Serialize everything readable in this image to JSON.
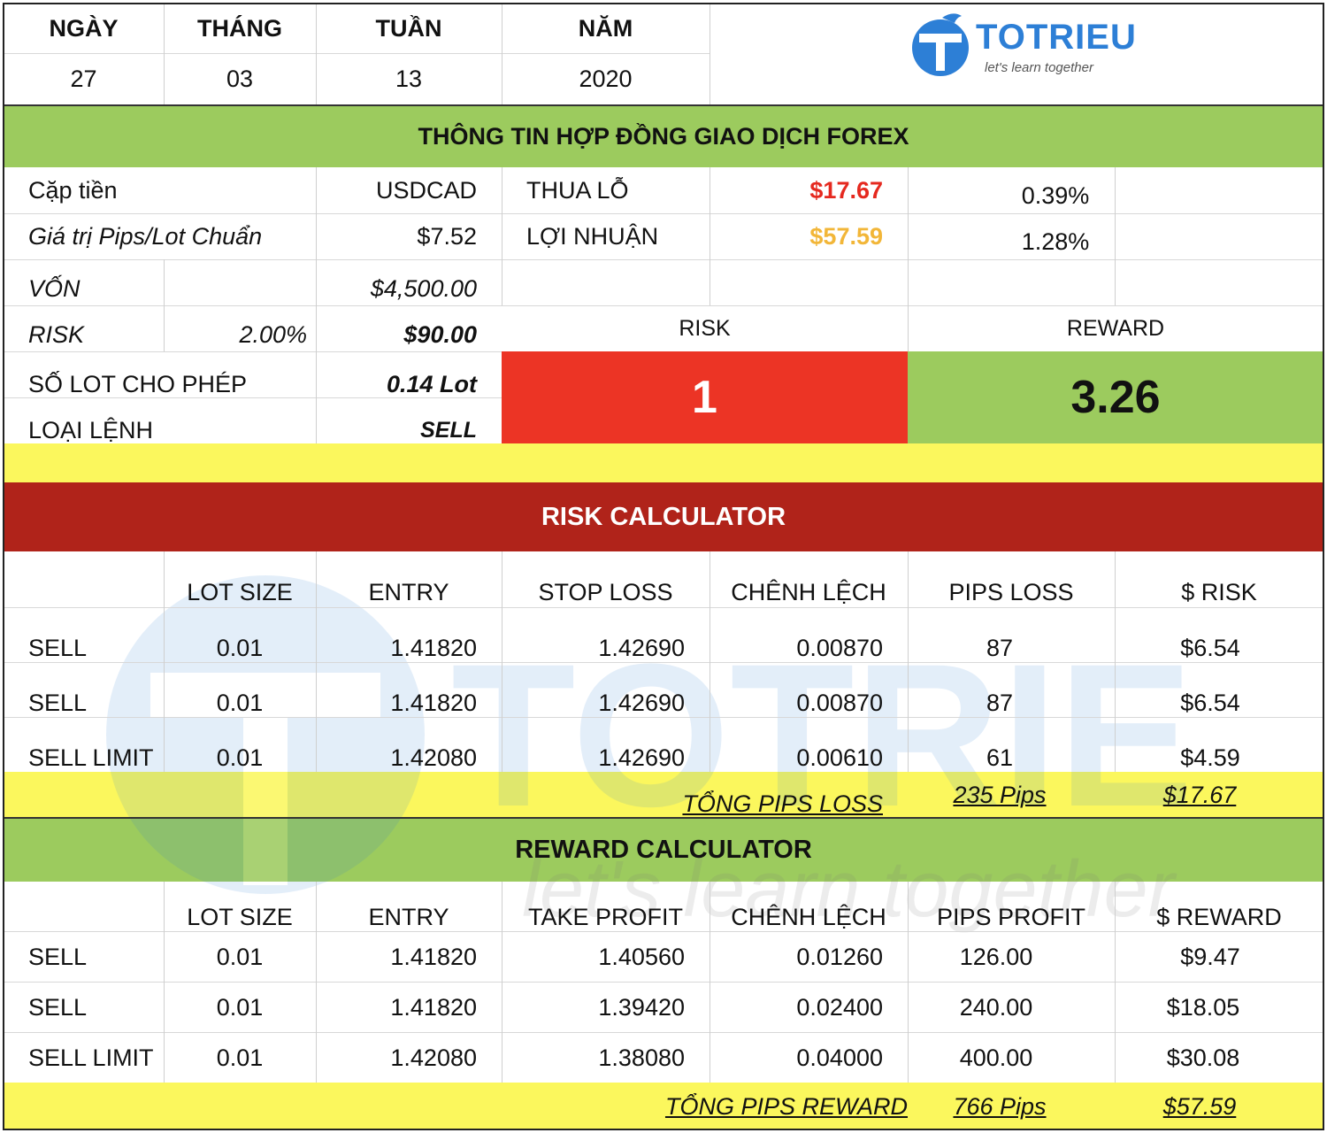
{
  "header": {
    "labels": [
      "NGÀY",
      "THÁNG",
      "TUẦN",
      "NĂM"
    ],
    "values": [
      "27",
      "03",
      "13",
      "2020"
    ],
    "logo_text": "TOTRIEU",
    "logo_tagline": "let's learn together"
  },
  "contract": {
    "title": "THÔNG TIN HỢP ĐỒNG GIAO DỊCH FOREX",
    "pair_label": "Cặp tiền",
    "pair_value": "USDCAD",
    "pip_label": "Giá trị Pips/Lot Chuẩn",
    "pip_value": "$7.52",
    "loss_label": "THUA LỖ",
    "loss_value": "$17.67",
    "loss_pct": "0.39%",
    "profit_label": "LỢI NHUẬN",
    "profit_value": "$57.59",
    "profit_pct": "1.28%",
    "capital_label": "VỐN",
    "capital_value": "$4,500.00",
    "risk_label": "RISK",
    "risk_pct": "2.00%",
    "risk_value": "$90.00",
    "lot_label": "SỐ LOT CHO PHÉP",
    "lot_value": "0.14 Lot",
    "order_label": "LOẠI LỆNH",
    "order_value": "SELL",
    "rr_risk_label": "RISK",
    "rr_reward_label": "REWARD",
    "rr_risk_value": "1",
    "rr_reward_value": "3.26"
  },
  "risk_calc": {
    "title": "RISK CALCULATOR",
    "columns": [
      "",
      "LOT SIZE",
      "ENTRY",
      "STOP LOSS",
      "CHÊNH LỆCH",
      "PIPS LOSS",
      "$ RISK"
    ],
    "rows": [
      [
        "SELL",
        "0.01",
        "1.41820",
        "1.42690",
        "0.00870",
        "87",
        "$6.54"
      ],
      [
        "SELL",
        "0.01",
        "1.41820",
        "1.42690",
        "0.00870",
        "87",
        "$6.54"
      ],
      [
        "SELL LIMIT",
        "0.01",
        "1.42080",
        "1.42690",
        "0.00610",
        "61",
        "$4.59"
      ]
    ],
    "total_label": "TỔNG PIPS LOSS",
    "total_pips": "235 Pips",
    "total_amount": "$17.67"
  },
  "reward_calc": {
    "title": "REWARD CALCULATOR",
    "columns": [
      "",
      "LOT SIZE",
      "ENTRY",
      "TAKE PROFIT",
      "CHÊNH LỆCH",
      "PIPS PROFIT",
      "$ REWARD"
    ],
    "rows": [
      [
        "SELL",
        "0.01",
        "1.41820",
        "1.40560",
        "0.01260",
        "126.00",
        "$9.47"
      ],
      [
        "SELL",
        "0.01",
        "1.41820",
        "1.39420",
        "0.02400",
        "240.00",
        "$18.05"
      ],
      [
        "SELL LIMIT",
        "0.01",
        "1.42080",
        "1.38080",
        "0.04000",
        "400.00",
        "$30.08"
      ]
    ],
    "total_label": "TỔNG PIPS REWARD",
    "total_pips": "766 Pips",
    "total_amount": "$57.59"
  },
  "colors": {
    "green": "#9ccb5e",
    "dark_red": "#b0231a",
    "red": "#ec3425",
    "yellow": "#fbf75d",
    "loss_text": "#e5291f",
    "profit_text": "#f2b638",
    "logo_blue": "#2d7fd6"
  }
}
